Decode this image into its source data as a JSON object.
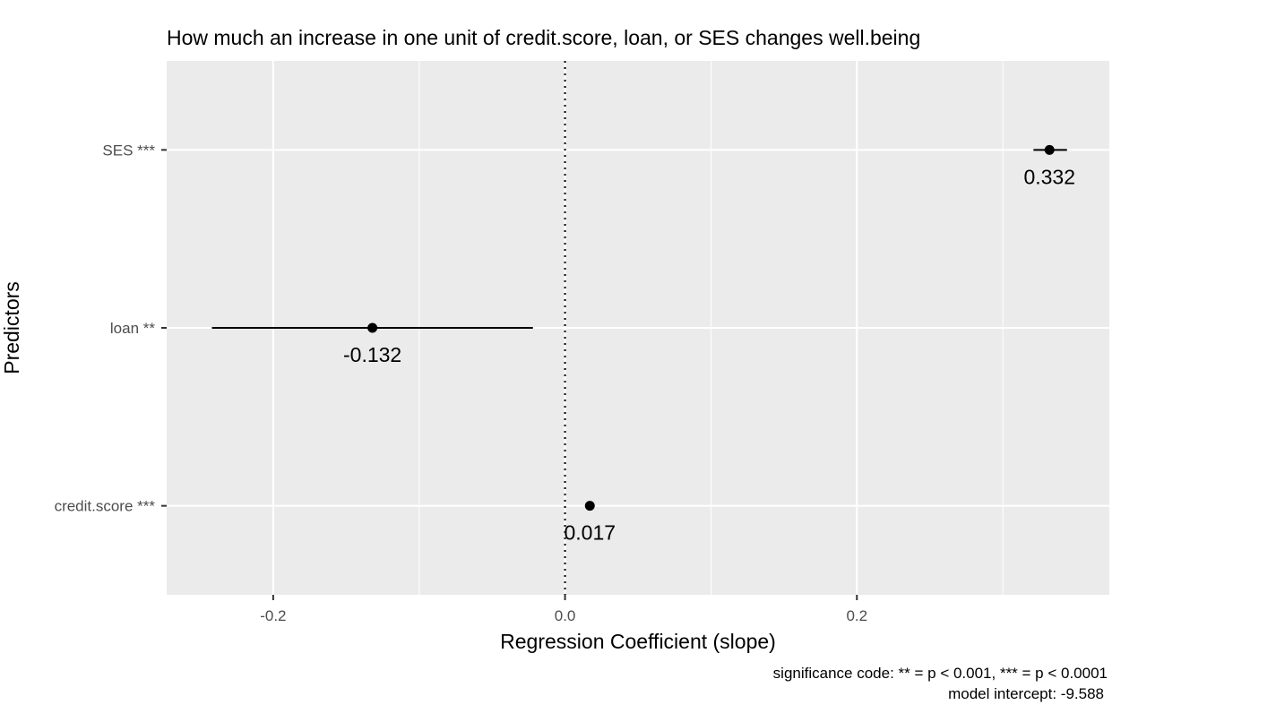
{
  "chart_data": {
    "type": "scatter",
    "title": "How much an increase in one unit of credit.score, loan, or SES changes well.being",
    "xlabel": "Regression Coefficient (slope)",
    "ylabel": "Predictors",
    "xlim": [
      -0.273,
      0.373
    ],
    "x_ticks": [
      -0.2,
      0.0,
      0.2
    ],
    "x_tick_labels": [
      "-0.2",
      "0.0",
      "0.2"
    ],
    "reference_line": 0,
    "grid": true,
    "categories": [
      "credit.score ***",
      "loan **",
      "SES ***"
    ],
    "points": [
      {
        "label": "credit.score ***",
        "estimate": 0.017,
        "ci_low": 0.017,
        "ci_high": 0.017,
        "value_label": "0.017"
      },
      {
        "label": "loan **",
        "estimate": -0.132,
        "ci_low": -0.242,
        "ci_high": -0.022,
        "value_label": "-0.132"
      },
      {
        "label": "SES ***",
        "estimate": 0.332,
        "ci_low": 0.321,
        "ci_high": 0.344,
        "value_label": "0.332"
      }
    ],
    "caption_lines": [
      "significance code: ** = p < 0.001, *** = p < 0.0001",
      "model intercept: -9.588"
    ],
    "colors": {
      "panel": "#ebebeb",
      "grid": "#ffffff",
      "marks": "#000000",
      "tick_text": "#4d4d4d"
    }
  }
}
